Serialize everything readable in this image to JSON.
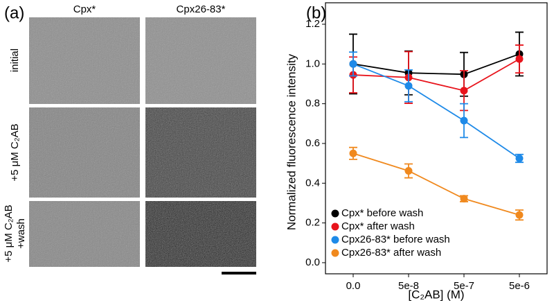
{
  "panel_a": {
    "label": "(a)",
    "columns": [
      "Cpx*",
      "Cpx26-83*"
    ],
    "rows": [
      [
        "initial"
      ],
      [
        "+5 μM C₂AB"
      ],
      [
        "+5 μM C₂AB",
        "+wash"
      ]
    ]
  },
  "chart_data": {
    "type": "line",
    "panel_label": "(b)",
    "x_label": "[C₂AB] (M)",
    "y_label": "Normalized fluorescence intensity",
    "categories": [
      "0.0",
      "5e-8",
      "5e-7",
      "5e-6"
    ],
    "ylim": [
      -0.056,
      1.308
    ],
    "yticks": [
      {
        "value": 0,
        "label": "0.0"
      },
      0.2,
      0.4,
      0.6,
      0.8,
      {
        "value": 1,
        "label": "1.0"
      },
      1.2
    ],
    "legend": "lower left",
    "series": [
      {
        "name": "Cpx* before wash",
        "color": "#000000",
        "values": [
          1.0,
          0.955,
          0.948,
          1.05
        ],
        "errors": [
          0.15,
          0.11,
          0.11,
          0.11
        ]
      },
      {
        "name": "Cpx* after wash",
        "color": "#e8141c",
        "values": [
          0.945,
          0.932,
          0.866,
          1.025
        ],
        "errors": [
          0.09,
          0.13,
          0.1,
          0.07
        ]
      },
      {
        "name": "Cpx26-83* before wash",
        "color": "#1e8ae8",
        "values": [
          1.0,
          0.89,
          0.715,
          0.525
        ],
        "errors": [
          0.06,
          0.08,
          0.085,
          0.02
        ]
      },
      {
        "name": "Cpx26-83* after wash",
        "color": "#f0891e",
        "values": [
          0.55,
          0.462,
          0.322,
          0.24
        ],
        "errors": [
          0.03,
          0.035,
          0.015,
          0.025
        ]
      }
    ]
  }
}
